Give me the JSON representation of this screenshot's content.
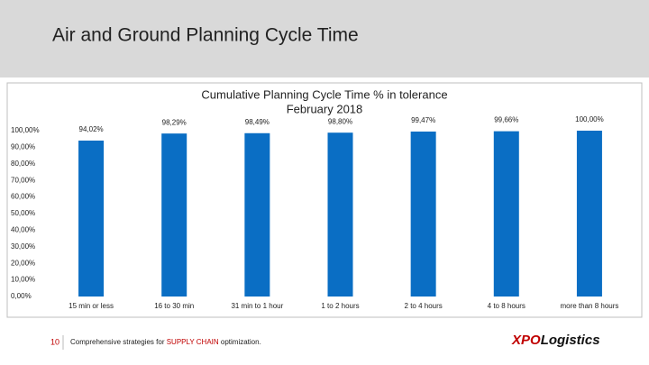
{
  "slide": {
    "title": "Air and Ground Planning Cycle Time",
    "page_number": "10",
    "footer": [
      "Comprehensive strategies for ",
      "SUPPLY CHAIN",
      " optimization."
    ],
    "logo": [
      "XPO",
      "Logistics"
    ]
  },
  "chart_data": {
    "type": "bar",
    "title": "Cumulative Planning Cycle Time % in tolerance",
    "subtitle": "February 2018",
    "categories": [
      "15 min or less",
      "16 to 30 min",
      "31 min to 1 hour",
      "1 to 2 hours",
      "2 to 4 hours",
      "4 to 8 hours",
      "more than 8 hours"
    ],
    "values": [
      94.02,
      98.29,
      98.49,
      98.8,
      99.47,
      99.66,
      100
    ],
    "value_labels": [
      "94,02%",
      "98,29%",
      "98,49%",
      "98,80%",
      "99,47%",
      "99,66%",
      "100,00%"
    ],
    "color": "#0a6ec4",
    "ylim": [
      0,
      100
    ],
    "yticks": [
      {
        "value": 0,
        "label": "0,00%"
      },
      {
        "value": 10,
        "label": "10,00%"
      },
      {
        "value": 20,
        "label": "20,00%"
      },
      {
        "value": 30,
        "label": "30,00%"
      },
      {
        "value": 40,
        "label": "40,00%"
      },
      {
        "value": 50,
        "label": "50,00%"
      },
      {
        "value": 60,
        "label": "60,00%"
      },
      {
        "value": 70,
        "label": "70,00%"
      },
      {
        "value": 80,
        "label": "80,00%"
      },
      {
        "value": 90,
        "label": "90,00%"
      },
      {
        "value": 100,
        "label": "100,00%"
      }
    ],
    "grid": false
  }
}
